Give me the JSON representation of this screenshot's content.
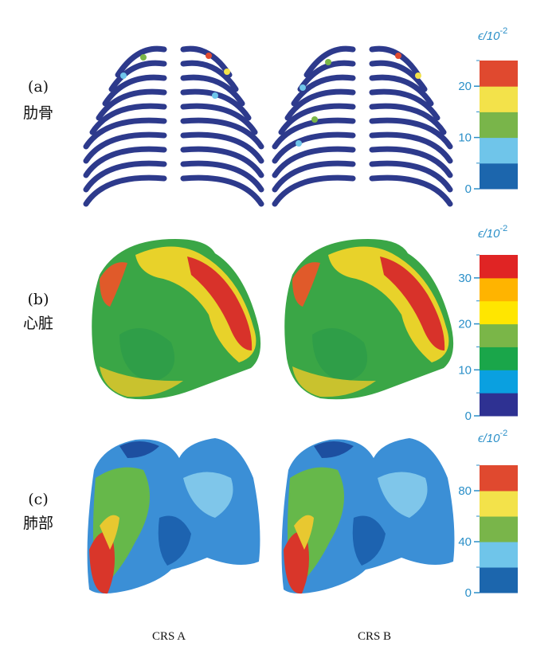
{
  "rows": [
    {
      "label": "(a)",
      "name": "肋骨",
      "colorbar": {
        "title": "ϵ/10",
        "exponent": "-2",
        "lim": [
          0,
          25
        ],
        "ticks": [
          0,
          10,
          20
        ],
        "colors": [
          "#1c66ad",
          "#6fc5ea",
          "#79b54a",
          "#f3e24a",
          "#e0492f"
        ]
      }
    },
    {
      "label": "(b)",
      "name": "心脏",
      "colorbar": {
        "title": "ϵ/10",
        "exponent": "-2",
        "lim": [
          0,
          35
        ],
        "ticks": [
          0,
          10,
          20,
          30
        ],
        "colors": [
          "#2e3192",
          "#0aa0e0",
          "#1aa64a",
          "#7ab648",
          "#ffe600",
          "#ffb400",
          "#e02424"
        ]
      }
    },
    {
      "label": "(c)",
      "name": "肺部",
      "colorbar": {
        "title": "ϵ/10",
        "exponent": "-2",
        "lim": [
          0,
          100
        ],
        "ticks": [
          0,
          40,
          80
        ],
        "colors": [
          "#1c66ad",
          "#6fc5ea",
          "#79b54a",
          "#f3e24a",
          "#e0492f"
        ]
      }
    }
  ],
  "columns": [
    "CRS A",
    "CRS B"
  ]
}
